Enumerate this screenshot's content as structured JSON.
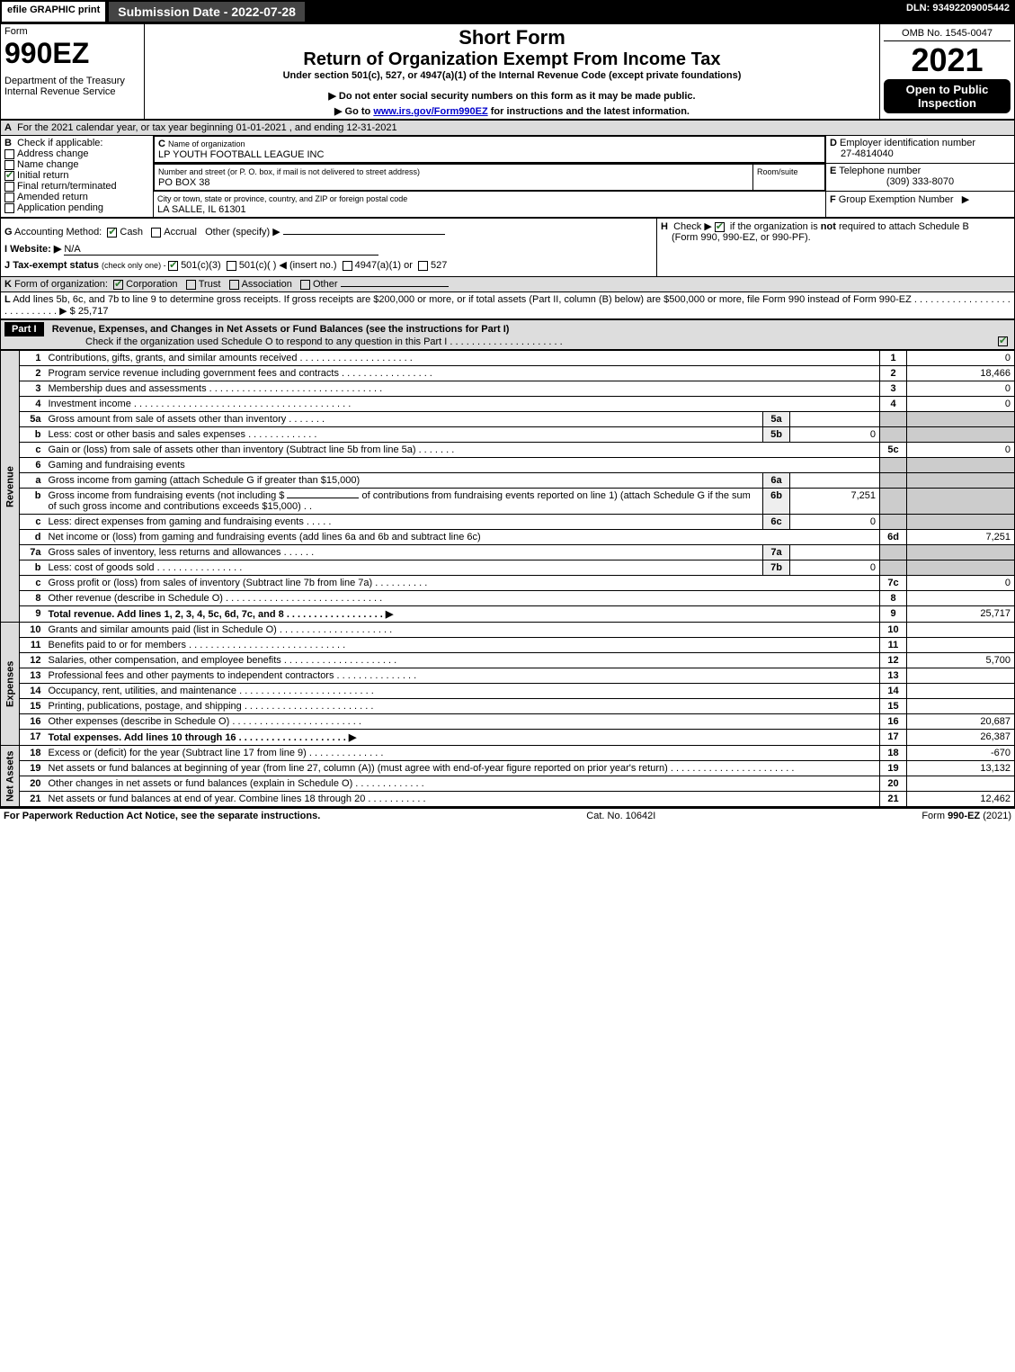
{
  "topbar": {
    "efile": "efile GRAPHIC print",
    "subdate": "Submission Date - 2022-07-28",
    "dln": "DLN: 93492209005442"
  },
  "header": {
    "form_label": "Form",
    "form_no": "990EZ",
    "dept": "Department of the Treasury",
    "irs": "Internal Revenue Service",
    "short_form": "Short Form",
    "title": "Return of Organization Exempt From Income Tax",
    "under": "Under section 501(c), 527, or 4947(a)(1) of the Internal Revenue Code (except private foundations)",
    "donot": "Do not enter social security numbers on this form as it may be made public.",
    "goto_pre": "Go to ",
    "goto_link": "www.irs.gov/Form990EZ",
    "goto_post": " for instructions and the latest information.",
    "omb": "OMB No. 1545-0047",
    "year": "2021",
    "open": "Open to Public Inspection"
  },
  "A": {
    "text": "For the 2021 calendar year, or tax year beginning 01-01-2021 , and ending 12-31-2021"
  },
  "B": {
    "label": "Check if applicable:",
    "items": [
      "Address change",
      "Name change",
      "Initial return",
      "Final return/terminated",
      "Amended return",
      "Application pending"
    ],
    "checked_idx": 2
  },
  "C": {
    "name_label": "Name of organization",
    "name": "LP YOUTH FOOTBALL LEAGUE INC",
    "addr_label": "Number and street (or P. O. box, if mail is not delivered to street address)",
    "room_label": "Room/suite",
    "addr": "PO BOX 38",
    "city_label": "City or town, state or province, country, and ZIP or foreign postal code",
    "city": "LA SALLE, IL  61301"
  },
  "D": {
    "label": "Employer identification number",
    "val": "27-4814040"
  },
  "E": {
    "label": "Telephone number",
    "val": "(309) 333-8070"
  },
  "F": {
    "label": "Group Exemption Number",
    "arrow": "▶"
  },
  "G": {
    "label": "Accounting Method:",
    "cash": "Cash",
    "accrual": "Accrual",
    "other": "Other (specify) ▶"
  },
  "H": {
    "text1": "Check ▶ ",
    "text2": " if the organization is ",
    "not": "not",
    "text3": " required to attach Schedule B",
    "text4": "(Form 990, 990-EZ, or 990-PF)."
  },
  "I": {
    "label": "Website: ▶",
    "val": "N/A"
  },
  "J": {
    "label": "Tax-exempt status",
    "small": "(check only one) - ",
    "o1": "501(c)(3)",
    "o2": "501(c)(  ) ◀ (insert no.)",
    "o3": "4947(a)(1) or",
    "o4": "527"
  },
  "K": {
    "label": "Form of organization:",
    "o1": "Corporation",
    "o2": "Trust",
    "o3": "Association",
    "o4": "Other"
  },
  "L": {
    "text": "Add lines 5b, 6c, and 7b to line 9 to determine gross receipts. If gross receipts are $200,000 or more, or if total assets (Part II, column (B) below) are $500,000 or more, file Form 990 instead of Form 990-EZ  .  .  .  .  .  .  .  .  .  .  .  .  .  .  .  .  .  .  .  .  .  .  .  .  .  .  .  .  ▶ $ 25,717"
  },
  "partI": {
    "hdr": "Part I",
    "title": "Revenue, Expenses, and Changes in Net Assets or Fund Balances (see the instructions for Part I)",
    "check": "Check if the organization used Schedule O to respond to any question in this Part I  .  .  .  .  .  .  .  .  .  .  .  .  .  .  .  .  .  .  .  .  . "
  },
  "sections": {
    "revenue": "Revenue",
    "expenses": "Expenses",
    "netassets": "Net Assets"
  },
  "lines": {
    "l1": {
      "n": "1",
      "d": "Contributions, gifts, grants, and similar amounts received  .  .  .  .  .  .  .  .  .  .  .  .  .  .  .  .  .  .  .  .  .",
      "c": "1",
      "a": "0"
    },
    "l2": {
      "n": "2",
      "d": "Program service revenue including government fees and contracts  .  .  .  .  .  .  .  .  .  .  .  .  .  .  .  .  .",
      "c": "2",
      "a": "18,466"
    },
    "l3": {
      "n": "3",
      "d": "Membership dues and assessments  .  .  .  .  .  .  .  .  .  .  .  .  .  .  .  .  .  .  .  .  .  .  .  .  .  .  .  .  .  .  .  .",
      "c": "3",
      "a": "0"
    },
    "l4": {
      "n": "4",
      "d": "Investment income  .  .  .  .  .  .  .  .  .  .  .  .  .  .  .  .  .  .  .  .  .  .  .  .  .  .  .  .  .  .  .  .  .  .  .  .  .  .  .  .",
      "c": "4",
      "a": "0"
    },
    "l5a": {
      "n": "5a",
      "d": "Gross amount from sale of assets other than inventory  .  .  .  .  .  .  .",
      "sc": "5a",
      "sa": ""
    },
    "l5b": {
      "n": "b",
      "d": "Less: cost or other basis and sales expenses  .  .  .  .  .  .  .  .  .  .  .  .  .",
      "sc": "5b",
      "sa": "0"
    },
    "l5c": {
      "n": "c",
      "d": "Gain or (loss) from sale of assets other than inventory (Subtract line 5b from line 5a)  .  .  .  .  .  .  .",
      "c": "5c",
      "a": "0"
    },
    "l6": {
      "n": "6",
      "d": "Gaming and fundraising events"
    },
    "l6a": {
      "n": "a",
      "d": "Gross income from gaming (attach Schedule G if greater than $15,000)",
      "sc": "6a",
      "sa": ""
    },
    "l6b": {
      "n": "b",
      "d1": "Gross income from fundraising events (not including $",
      "d2": "of contributions from fundraising events reported on line 1) (attach Schedule G if the sum of such gross income and contributions exceeds $15,000)    .   .",
      "sc": "6b",
      "sa": "7,251"
    },
    "l6c_sub": {
      "n": "c",
      "d": "Less: direct expenses from gaming and fundraising events    .  .  .  .  .",
      "sc": "6c",
      "sa": "0"
    },
    "l6d": {
      "n": "d",
      "d": "Net income or (loss) from gaming and fundraising events (add lines 6a and 6b and subtract line 6c)",
      "c": "6d",
      "a": "7,251"
    },
    "l7a": {
      "n": "7a",
      "d": "Gross sales of inventory, less returns and allowances  .  .  .  .  .  .",
      "sc": "7a",
      "sa": ""
    },
    "l7b": {
      "n": "b",
      "d": "Less: cost of goods sold            .  .  .  .  .  .  .  .  .  .  .  .  .  .  .  .",
      "sc": "7b",
      "sa": "0"
    },
    "l7c": {
      "n": "c",
      "d": "Gross profit or (loss) from sales of inventory (Subtract line 7b from line 7a)  .  .  .  .  .  .  .  .  .  .",
      "c": "7c",
      "a": "0"
    },
    "l8": {
      "n": "8",
      "d": "Other revenue (describe in Schedule O)  .  .  .  .  .  .  .  .  .  .  .  .  .  .  .  .  .  .  .  .  .  .  .  .  .  .  .  .  .",
      "c": "8",
      "a": ""
    },
    "l9": {
      "n": "9",
      "d": "Total revenue. Add lines 1, 2, 3, 4, 5c, 6d, 7c, and 8   .  .  .  .  .  .  .  .  .  .  .  .  .  .  .  .  .  . ▶",
      "c": "9",
      "a": "25,717",
      "bold": true
    },
    "l10": {
      "n": "10",
      "d": "Grants and similar amounts paid (list in Schedule O)  .  .  .  .  .  .  .  .  .  .  .  .  .  .  .  .  .  .  .  .  .",
      "c": "10",
      "a": ""
    },
    "l11": {
      "n": "11",
      "d": "Benefits paid to or for members       .  .  .  .  .  .  .  .  .  .  .  .  .  .  .  .  .  .  .  .  .  .  .  .  .  .  .  .  .",
      "c": "11",
      "a": ""
    },
    "l12": {
      "n": "12",
      "d": "Salaries, other compensation, and employee benefits  .  .  .  .  .  .  .  .  .  .  .  .  .  .  .  .  .  .  .  .  .",
      "c": "12",
      "a": "5,700"
    },
    "l13": {
      "n": "13",
      "d": "Professional fees and other payments to independent contractors  .  .  .  .  .  .  .  .  .  .  .  .  .  .  .",
      "c": "13",
      "a": ""
    },
    "l14": {
      "n": "14",
      "d": "Occupancy, rent, utilities, and maintenance .  .  .  .  .  .  .  .  .  .  .  .  .  .  .  .  .  .  .  .  .  .  .  .  .",
      "c": "14",
      "a": ""
    },
    "l15": {
      "n": "15",
      "d": "Printing, publications, postage, and shipping .  .  .  .  .  .  .  .  .  .  .  .  .  .  .  .  .  .  .  .  .  .  .  .",
      "c": "15",
      "a": ""
    },
    "l16": {
      "n": "16",
      "d": "Other expenses (describe in Schedule O)      .  .  .  .  .  .  .  .  .  .  .  .  .  .  .  .  .  .  .  .  .  .  .  .",
      "c": "16",
      "a": "20,687"
    },
    "l17": {
      "n": "17",
      "d": "Total expenses. Add lines 10 through 16      .  .  .  .  .  .  .  .  .  .  .  .  .  .  .  .  .  .  .  . ▶",
      "c": "17",
      "a": "26,387",
      "bold": true
    },
    "l18": {
      "n": "18",
      "d": "Excess or (deficit) for the year (Subtract line 17 from line 9)         .  .  .  .  .  .  .  .  .  .  .  .  .  .",
      "c": "18",
      "a": "-670"
    },
    "l19": {
      "n": "19",
      "d": "Net assets or fund balances at beginning of year (from line 27, column (A)) (must agree with end-of-year figure reported on prior year's return) .  .  .  .  .  .  .  .  .  .  .  .  .  .  .  .  .  .  .  .  .  .  .",
      "c": "19",
      "a": "13,132"
    },
    "l20": {
      "n": "20",
      "d": "Other changes in net assets or fund balances (explain in Schedule O)  .  .  .  .  .  .  .  .  .  .  .  .  .",
      "c": "20",
      "a": ""
    },
    "l21": {
      "n": "21",
      "d": "Net assets or fund balances at end of year. Combine lines 18 through 20  .  .  .  .  .  .  .  .  .  .  .",
      "c": "21",
      "a": "12,462"
    }
  },
  "footer": {
    "left": "For Paperwork Reduction Act Notice, see the separate instructions.",
    "mid": "Cat. No. 10642I",
    "right_pre": "Form ",
    "right_b": "990-EZ",
    "right_post": " (2021)"
  }
}
